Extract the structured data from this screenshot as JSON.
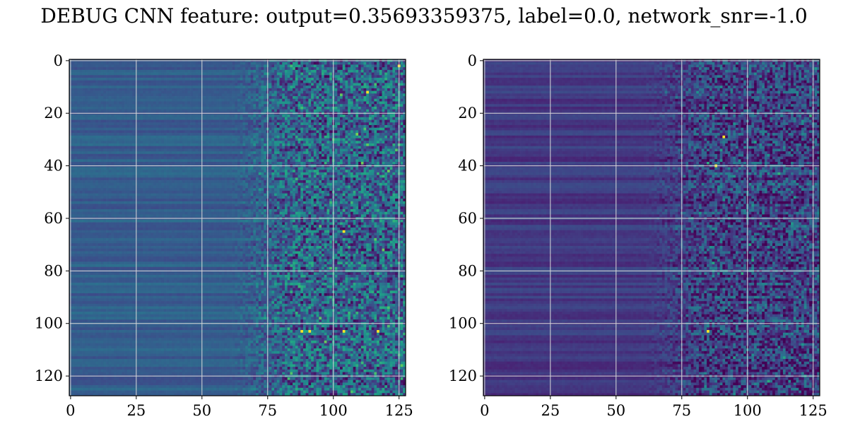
{
  "title": "DEBUG CNN feature: output=0.35693359375, label=0.0, network_snr=-1.0",
  "colors": {
    "colormap": "viridis",
    "grid": "#d9d9d9",
    "axes_edge": "#000000",
    "background": "#ffffff"
  },
  "chart_data": [
    {
      "type": "heatmap",
      "title": "",
      "xlabel": "",
      "ylabel": "",
      "shape": [
        128,
        128
      ],
      "xlim": [
        -0.5,
        127.5
      ],
      "ylim": [
        127.5,
        -0.5
      ],
      "xticks": [
        0,
        25,
        50,
        75,
        100,
        125
      ],
      "xtick_labels": [
        "0",
        "25",
        "50",
        "75",
        "100",
        "125"
      ],
      "yticks": [
        0,
        20,
        40,
        60,
        80,
        100,
        120
      ],
      "ytick_labels": [
        "0",
        "20",
        "40",
        "60",
        "80",
        "100",
        "120"
      ],
      "grid": true,
      "description_of_values": {
        "columns_0_to_70": "smooth horizontal bands, mid-range (blue to teal)",
        "columns_70_to_127": "noisy, speckled, brighter values",
        "peak_cells": [
          [
            88,
            103
          ],
          [
            91,
            103
          ],
          [
            104,
            103
          ],
          [
            117,
            103
          ],
          [
            104,
            65
          ],
          [
            113,
            12
          ],
          [
            125,
            2
          ]
        ]
      }
    },
    {
      "type": "heatmap",
      "title": "",
      "xlabel": "",
      "ylabel": "",
      "shape": [
        128,
        128
      ],
      "xlim": [
        -0.5,
        127.5
      ],
      "ylim": [
        127.5,
        -0.5
      ],
      "xticks": [
        0,
        25,
        50,
        75,
        100,
        125
      ],
      "xtick_labels": [
        "0",
        "25",
        "50",
        "75",
        "100",
        "125"
      ],
      "yticks": [
        0,
        20,
        40,
        60,
        80,
        100,
        120
      ],
      "ytick_labels": [
        "0",
        "20",
        "40",
        "60",
        "80",
        "100",
        "120"
      ],
      "grid": true,
      "description_of_values": {
        "columns_0_to_70": "smooth horizontal bands, low values (dark purple to blue)",
        "columns_70_to_127": "noisy, speckled, slightly brighter",
        "peak_cells": [
          [
            88,
            40
          ],
          [
            91,
            29
          ],
          [
            85,
            103
          ]
        ]
      }
    }
  ]
}
